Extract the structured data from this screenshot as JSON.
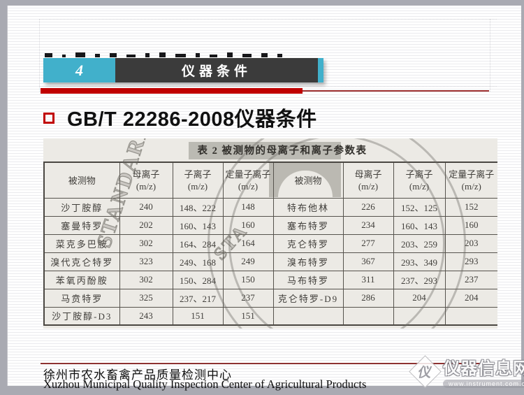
{
  "banner": {
    "number": "4",
    "label": "仪器条件"
  },
  "heading": {
    "text": "GB/T 22286-2008仪器条件"
  },
  "scan": {
    "caption": "表 2  被测物的母离子和离子参数表",
    "watermark": "STANDARD",
    "watermark_short": "STA",
    "columns": [
      "被测物",
      "母离子",
      "子离子",
      "定量子离子"
    ],
    "unit": "(m/z)",
    "left_rows": [
      [
        "沙丁胺醇",
        "240",
        "148、222",
        "148"
      ],
      [
        "塞曼特罗",
        "202",
        "160、143",
        "160"
      ],
      [
        "菜克多巴胺",
        "302",
        "164、284",
        "164"
      ],
      [
        "溴代克仑特罗",
        "323",
        "249、168",
        "249"
      ],
      [
        "苯氧丙酚胺",
        "302",
        "150、284",
        "150"
      ],
      [
        "马贲特罗",
        "325",
        "237、217",
        "237"
      ],
      [
        "沙丁胺醇-D3",
        "243",
        "151",
        "151"
      ]
    ],
    "right_rows": [
      [
        "特布他林",
        "226",
        "152、125",
        "152"
      ],
      [
        "塞布特罗",
        "234",
        "160、143",
        "160"
      ],
      [
        "克仑特罗",
        "277",
        "203、259",
        "203"
      ],
      [
        "溴布特罗",
        "367",
        "293、349",
        "293"
      ],
      [
        "马布特罗",
        "311",
        "237、293",
        "237"
      ],
      [
        "克仑特罗-D9",
        "286",
        "204",
        "204"
      ],
      [
        "",
        "",
        "",
        ""
      ]
    ]
  },
  "footer": {
    "org_cn": "徐州市农水畜禽产品质量检测中心",
    "org_en": "Xuzhou Municipal Quality Inspection Center of Agricultural Products"
  },
  "logo": {
    "site_name": "仪器信息网",
    "site_url": "www.instrument.com.cn"
  },
  "colors": {
    "teal": "#41B0CB",
    "dark": "#3B3B3B",
    "accent_red": "#C00000",
    "thin_red": "#9E2F2F",
    "scan_bg": "#ECEAE5",
    "stage_gray": "#A9AAB2"
  }
}
